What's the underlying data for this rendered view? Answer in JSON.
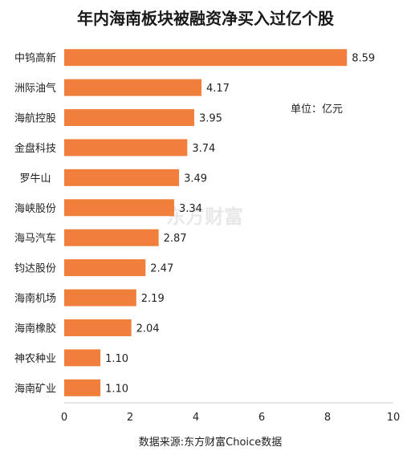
{
  "chart_data": {
    "type": "bar",
    "orientation": "horizontal",
    "title": "年内海南板块被融资净买入过亿个股",
    "unit_label": "单位：亿元",
    "categories": [
      "中钨高新",
      "洲际油气",
      "海航控股",
      "金盘科技",
      "罗牛山",
      "海峡股份",
      "海马汽车",
      "钧达股份",
      "海南机场",
      "海南橡胶",
      "神农种业",
      "海南矿业"
    ],
    "values": [
      8.59,
      4.17,
      3.95,
      3.74,
      3.49,
      3.34,
      2.87,
      2.47,
      2.19,
      2.04,
      1.1,
      1.1
    ],
    "value_labels": [
      "8.59",
      "4.17",
      "3.95",
      "3.74",
      "3.49",
      "3.34",
      "2.87",
      "2.47",
      "2.19",
      "2.04",
      "1.10",
      "1.10"
    ],
    "xlim": [
      0,
      10
    ],
    "xticks": [
      "0",
      "2",
      "4",
      "6",
      "8",
      "10"
    ],
    "grid": false,
    "bar_color": "#f07f3c",
    "source": "数据来源:东方财富Choice数据",
    "watermark": "东方财富"
  }
}
